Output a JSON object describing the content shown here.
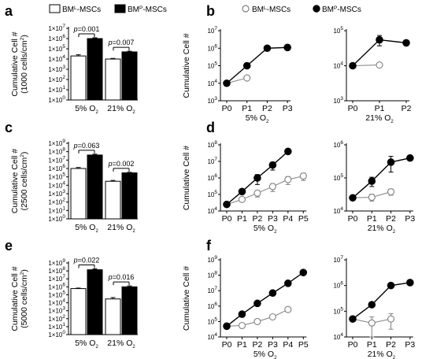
{
  "legend_a": [
    {
      "label_main": "BM",
      "label_sup": "L",
      "label_rest": "-MSCs",
      "fill": "#ffffff"
    },
    {
      "label_main": "BM",
      "label_sup": "P",
      "label_rest": "-MSCs",
      "fill": "#000000"
    }
  ],
  "legend_b": [
    {
      "label_main": "BM",
      "label_sup": "L",
      "label_rest": "-MSCs",
      "marker": "open-circle"
    },
    {
      "label_main": "BM",
      "label_sup": "P",
      "label_rest": "-MSCs",
      "marker": "filled-circle"
    }
  ],
  "colors": {
    "black": "#000000",
    "open_series": "#808080"
  },
  "chart_data": [
    {
      "panel": "a",
      "type": "bar",
      "ylabel_main": "Cumulative Cell #",
      "ylabel_sub": "(1000 cells/cm",
      "ylabel_sub_sup": "2",
      "ylabel_sub_end": ")",
      "y_scale": "log10",
      "ylim": [
        1,
        10000000
      ],
      "y_ticks": [
        {
          "base": "1×10",
          "exp": "0"
        },
        {
          "base": "1×10",
          "exp": "1"
        },
        {
          "base": "1×10",
          "exp": "2"
        },
        {
          "base": "1×10",
          "exp": "3"
        },
        {
          "base": "1×10",
          "exp": "4"
        },
        {
          "base": "1×10",
          "exp": "5"
        },
        {
          "base": "1×10",
          "exp": "6"
        },
        {
          "base": "1×10",
          "exp": "7"
        }
      ],
      "categories": [
        {
          "main": "5% O",
          "sub": "2"
        },
        {
          "main": "21% O",
          "sub": "2"
        }
      ],
      "series": [
        {
          "name": "BM^L-MSCs",
          "fill": "#ffffff",
          "values": [
            20000,
            10000
          ],
          "errors": [
            6000,
            1500
          ]
        },
        {
          "name": "BM^P-MSCs",
          "fill": "#000000",
          "values": [
            1000000,
            50000
          ],
          "errors": [
            200000,
            8000
          ]
        }
      ],
      "pvalues": [
        "p=0.001",
        "p=0.007"
      ]
    },
    {
      "panel": "c",
      "type": "bar",
      "ylabel_main": "Cumulative Cell #",
      "ylabel_sub": "(2500 cells/cm",
      "ylabel_sub_sup": "2",
      "ylabel_sub_end": ")",
      "y_scale": "log10",
      "ylim": [
        1,
        1000000000
      ],
      "y_ticks": [
        {
          "base": "1×10",
          "exp": "0"
        },
        {
          "base": "1×10",
          "exp": "1"
        },
        {
          "base": "1×10",
          "exp": "2"
        },
        {
          "base": "1×10",
          "exp": "3"
        },
        {
          "base": "1×10",
          "exp": "4"
        },
        {
          "base": "1×10",
          "exp": "5"
        },
        {
          "base": "1×10",
          "exp": "6"
        },
        {
          "base": "1×10",
          "exp": "7"
        },
        {
          "base": "1×10",
          "exp": "8"
        },
        {
          "base": "1×10",
          "exp": "9"
        }
      ],
      "categories": [
        {
          "main": "5% O",
          "sub": "2"
        },
        {
          "main": "21% O",
          "sub": "2"
        }
      ],
      "series": [
        {
          "name": "BM^L-MSCs",
          "fill": "#ffffff",
          "values": [
            1000000,
            30000
          ],
          "errors": [
            300000,
            8000
          ]
        },
        {
          "name": "BM^P-MSCs",
          "fill": "#000000",
          "values": [
            40000000,
            300000
          ],
          "errors": [
            10000000,
            50000
          ]
        }
      ],
      "pvalues": [
        "p=0.063",
        "p=0.002"
      ]
    },
    {
      "panel": "e",
      "type": "bar",
      "ylabel_main": "Cumulative Cell #",
      "ylabel_sub": "(5000 cells/cm",
      "ylabel_sub_sup": "2",
      "ylabel_sub_end": ")",
      "y_scale": "log10",
      "ylim": [
        1,
        1000000000
      ],
      "y_ticks": [
        {
          "base": "1×10",
          "exp": "0"
        },
        {
          "base": "1×10",
          "exp": "1"
        },
        {
          "base": "1×10",
          "exp": "2"
        },
        {
          "base": "1×10",
          "exp": "3"
        },
        {
          "base": "1×10",
          "exp": "4"
        },
        {
          "base": "1×10",
          "exp": "5"
        },
        {
          "base": "1×10",
          "exp": "6"
        },
        {
          "base": "1×10",
          "exp": "7"
        },
        {
          "base": "1×10",
          "exp": "8"
        },
        {
          "base": "1×10",
          "exp": "9"
        }
      ],
      "categories": [
        {
          "main": "5% O",
          "sub": "2"
        },
        {
          "main": "21% O",
          "sub": "2"
        }
      ],
      "series": [
        {
          "name": "BM^L-MSCs",
          "fill": "#ffffff",
          "values": [
            600000,
            30000
          ],
          "errors": [
            100000,
            15000
          ]
        },
        {
          "name": "BM^P-MSCs",
          "fill": "#000000",
          "values": [
            140000000,
            1000000
          ],
          "errors": [
            40000000,
            300000
          ]
        }
      ],
      "pvalues": [
        "p=0.022",
        "p=0.016"
      ]
    },
    {
      "panel": "b",
      "type": "line",
      "sub_index": 0,
      "ylabel_main": "Cumulative Cell #",
      "xlabel_main": "5% O",
      "xlabel_sub": "2",
      "y_scale": "log10",
      "ylim": [
        1000,
        10000000
      ],
      "y_ticks": [
        {
          "base": "10",
          "exp": "3"
        },
        {
          "base": "10",
          "exp": "4"
        },
        {
          "base": "10",
          "exp": "5"
        },
        {
          "base": "10",
          "exp": "6"
        },
        {
          "base": "10",
          "exp": "7"
        }
      ],
      "x": [
        "P0",
        "P1",
        "P2",
        "P3"
      ],
      "series": [
        {
          "name": "BM^L-MSCs",
          "marker": "open",
          "values": [
            10000,
            20000,
            null,
            null
          ],
          "errors": [
            0,
            5000,
            0,
            0
          ]
        },
        {
          "name": "BM^P-MSCs",
          "marker": "filled",
          "values": [
            10000,
            100000,
            1000000,
            1100000
          ],
          "errors": [
            0,
            0,
            0,
            0
          ]
        }
      ]
    },
    {
      "panel": "b",
      "type": "line",
      "sub_index": 1,
      "xlabel_main": "21% O",
      "xlabel_sub": "2",
      "y_scale": "log10",
      "ylim": [
        1000,
        100000
      ],
      "y_ticks": [
        {
          "base": "10",
          "exp": "3"
        },
        {
          "base": "10",
          "exp": "4"
        },
        {
          "base": "10",
          "exp": "5"
        }
      ],
      "x": [
        "P0",
        "P1",
        "P2"
      ],
      "series": [
        {
          "name": "BM^L-MSCs",
          "marker": "open",
          "values": [
            10000,
            10500,
            null
          ],
          "errors": [
            0,
            0,
            0
          ]
        },
        {
          "name": "BM^P-MSCs",
          "marker": "filled",
          "values": [
            10000,
            55000,
            45000
          ],
          "errors": [
            0,
            18000,
            0
          ]
        }
      ]
    },
    {
      "panel": "d",
      "type": "line",
      "sub_index": 0,
      "ylabel_main": "Cumulative Cell #",
      "xlabel_main": "5% O",
      "xlabel_sub": "2",
      "y_scale": "log10",
      "ylim": [
        10000,
        100000000
      ],
      "y_ticks": [
        {
          "base": "10",
          "exp": "4"
        },
        {
          "base": "10",
          "exp": "5"
        },
        {
          "base": "10",
          "exp": "6"
        },
        {
          "base": "10",
          "exp": "7"
        },
        {
          "base": "10",
          "exp": "8"
        }
      ],
      "x": [
        "P0",
        "P1",
        "P2",
        "P3",
        "P4",
        "P5"
      ],
      "series": [
        {
          "name": "BM^L-MSCs",
          "marker": "open",
          "values": [
            25000,
            50000,
            120000,
            300000,
            800000,
            1300000
          ],
          "errors": [
            0,
            10000,
            50000,
            150000,
            400000,
            600000
          ]
        },
        {
          "name": "BM^P-MSCs",
          "marker": "filled",
          "values": [
            25000,
            150000,
            1000000,
            6000000,
            40000000,
            null
          ],
          "errors": [
            0,
            40000,
            600000,
            3000000,
            10000000,
            0
          ]
        }
      ]
    },
    {
      "panel": "d",
      "type": "line",
      "sub_index": 1,
      "xlabel_main": "21% O",
      "xlabel_sub": "2",
      "y_scale": "log10",
      "ylim": [
        10000,
        1000000
      ],
      "y_ticks": [
        {
          "base": "10",
          "exp": "4"
        },
        {
          "base": "10",
          "exp": "5"
        },
        {
          "base": "10",
          "exp": "6"
        }
      ],
      "x": [
        "P0",
        "P1",
        "P2",
        "P3"
      ],
      "series": [
        {
          "name": "BM^L-MSCs",
          "marker": "open",
          "values": [
            25000,
            26000,
            38000,
            null
          ],
          "errors": [
            0,
            6000,
            8000,
            0
          ]
        },
        {
          "name": "BM^P-MSCs",
          "marker": "filled",
          "values": [
            25000,
            80000,
            300000,
            400000
          ],
          "errors": [
            0,
            25000,
            150000,
            0
          ]
        }
      ]
    },
    {
      "panel": "f",
      "type": "line",
      "sub_index": 0,
      "ylabel_main": "Cumulative Cell #",
      "xlabel_main": "5% O",
      "xlabel_sub": "2",
      "y_scale": "log10",
      "ylim": [
        10000,
        1000000000
      ],
      "y_ticks": [
        {
          "base": "10",
          "exp": "4"
        },
        {
          "base": "10",
          "exp": "5"
        },
        {
          "base": "10",
          "exp": "6"
        },
        {
          "base": "10",
          "exp": "7"
        },
        {
          "base": "10",
          "exp": "8"
        },
        {
          "base": "10",
          "exp": "9"
        }
      ],
      "x": [
        "P0",
        "P1",
        "P2",
        "P3",
        "P4",
        "P5"
      ],
      "series": [
        {
          "name": "BM^L-MSCs",
          "marker": "open",
          "values": [
            50000,
            55000,
            100000,
            200000,
            600000,
            null
          ],
          "errors": [
            0,
            10000,
            0,
            0,
            0,
            0
          ]
        },
        {
          "name": "BM^P-MSCs",
          "marker": "filled",
          "values": [
            50000,
            300000,
            1500000,
            7000000,
            30000000,
            150000000
          ],
          "errors": [
            0,
            0,
            0,
            0,
            0,
            0
          ]
        }
      ]
    },
    {
      "panel": "f",
      "type": "line",
      "sub_index": 1,
      "xlabel_main": "21% O",
      "xlabel_sub": "2",
      "y_scale": "log10",
      "ylim": [
        10000,
        10000000
      ],
      "y_ticks": [
        {
          "base": "10",
          "exp": "4"
        },
        {
          "base": "10",
          "exp": "5"
        },
        {
          "base": "10",
          "exp": "6"
        },
        {
          "base": "10",
          "exp": "7"
        }
      ],
      "x": [
        "P0",
        "P1",
        "P2",
        "P3"
      ],
      "series": [
        {
          "name": "BM^L-MSCs",
          "marker": "open",
          "values": [
            50000,
            35000,
            50000,
            null
          ],
          "errors": [
            0,
            25000,
            30000,
            0
          ]
        },
        {
          "name": "BM^P-MSCs",
          "marker": "filled",
          "values": [
            50000,
            180000,
            1000000,
            1300000
          ],
          "errors": [
            0,
            0,
            0,
            0
          ]
        }
      ]
    }
  ],
  "panel_letters": [
    "a",
    "b",
    "c",
    "d",
    "e",
    "f"
  ]
}
